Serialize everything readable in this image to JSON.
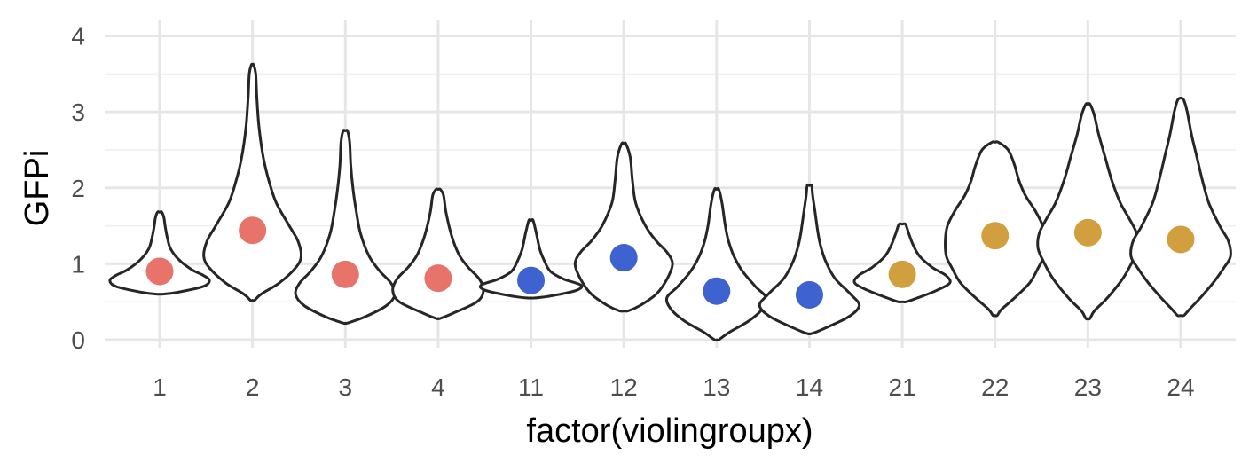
{
  "chart_data": {
    "type": "violin",
    "xlabel": "factor(violingroupx)",
    "ylabel": "GFPi",
    "ylim": [
      -0.05,
      4.2
    ],
    "yticks": [
      "0",
      "1",
      "2",
      "3",
      "4"
    ],
    "grid": true,
    "legend": "none",
    "categories": [
      "1",
      "2",
      "3",
      "4",
      "11",
      "12",
      "13",
      "14",
      "21",
      "22",
      "23",
      "24"
    ],
    "point_colors": {
      "red": "#e8736b",
      "blue": "#3e63d1",
      "gold": "#d29f3f"
    },
    "groups": [
      {
        "category": "1",
        "point": 0.9,
        "color": "red",
        "profile": [
          [
            0.6,
            0.03
          ],
          [
            0.62,
            0.15
          ],
          [
            0.7,
            0.4
          ],
          [
            0.78,
            0.46
          ],
          [
            0.85,
            0.4
          ],
          [
            0.92,
            0.3
          ],
          [
            1.05,
            0.18
          ],
          [
            1.2,
            0.1
          ],
          [
            1.35,
            0.07
          ],
          [
            1.5,
            0.05
          ],
          [
            1.6,
            0.04
          ],
          [
            1.68,
            0.02
          ]
        ]
      },
      {
        "category": "2",
        "point": 1.44,
        "color": "red",
        "profile": [
          [
            0.52,
            0.02
          ],
          [
            0.6,
            0.08
          ],
          [
            0.75,
            0.25
          ],
          [
            0.95,
            0.4
          ],
          [
            1.1,
            0.45
          ],
          [
            1.3,
            0.42
          ],
          [
            1.5,
            0.34
          ],
          [
            1.8,
            0.22
          ],
          [
            2.1,
            0.15
          ],
          [
            2.4,
            0.1
          ],
          [
            2.8,
            0.06
          ],
          [
            3.2,
            0.04
          ],
          [
            3.5,
            0.03
          ],
          [
            3.62,
            0.01
          ]
        ]
      },
      {
        "category": "3",
        "point": 0.86,
        "color": "red",
        "profile": [
          [
            0.22,
            0.02
          ],
          [
            0.3,
            0.18
          ],
          [
            0.45,
            0.38
          ],
          [
            0.6,
            0.46
          ],
          [
            0.75,
            0.42
          ],
          [
            0.9,
            0.32
          ],
          [
            1.1,
            0.22
          ],
          [
            1.4,
            0.14
          ],
          [
            1.7,
            0.1
          ],
          [
            2.0,
            0.07
          ],
          [
            2.3,
            0.05
          ],
          [
            2.6,
            0.04
          ],
          [
            2.75,
            0.02
          ]
        ]
      },
      {
        "category": "4",
        "point": 0.81,
        "color": "red",
        "profile": [
          [
            0.28,
            0.02
          ],
          [
            0.35,
            0.14
          ],
          [
            0.5,
            0.36
          ],
          [
            0.65,
            0.42
          ],
          [
            0.8,
            0.38
          ],
          [
            0.95,
            0.28
          ],
          [
            1.1,
            0.2
          ],
          [
            1.3,
            0.14
          ],
          [
            1.5,
            0.1
          ],
          [
            1.7,
            0.07
          ],
          [
            1.9,
            0.05
          ],
          [
            1.98,
            0.02
          ]
        ]
      },
      {
        "category": "11",
        "point": 0.78,
        "color": "blue",
        "profile": [
          [
            0.55,
            0.04
          ],
          [
            0.58,
            0.2
          ],
          [
            0.65,
            0.42
          ],
          [
            0.72,
            0.46
          ],
          [
            0.8,
            0.3
          ],
          [
            0.9,
            0.18
          ],
          [
            1.05,
            0.12
          ],
          [
            1.2,
            0.08
          ],
          [
            1.4,
            0.05
          ],
          [
            1.57,
            0.02
          ]
        ]
      },
      {
        "category": "12",
        "point": 1.08,
        "color": "blue",
        "profile": [
          [
            0.38,
            0.04
          ],
          [
            0.45,
            0.15
          ],
          [
            0.6,
            0.3
          ],
          [
            0.8,
            0.4
          ],
          [
            1.0,
            0.45
          ],
          [
            1.15,
            0.4
          ],
          [
            1.3,
            0.3
          ],
          [
            1.5,
            0.2
          ],
          [
            1.8,
            0.11
          ],
          [
            2.1,
            0.08
          ],
          [
            2.4,
            0.06
          ],
          [
            2.58,
            0.02
          ]
        ]
      },
      {
        "category": "13",
        "point": 0.64,
        "color": "blue",
        "profile": [
          [
            0.0,
            0.02
          ],
          [
            0.1,
            0.12
          ],
          [
            0.25,
            0.3
          ],
          [
            0.4,
            0.42
          ],
          [
            0.55,
            0.46
          ],
          [
            0.7,
            0.36
          ],
          [
            0.9,
            0.24
          ],
          [
            1.1,
            0.16
          ],
          [
            1.3,
            0.11
          ],
          [
            1.5,
            0.08
          ],
          [
            1.8,
            0.05
          ],
          [
            1.98,
            0.02
          ]
        ]
      },
      {
        "category": "14",
        "point": 0.59,
        "color": "blue",
        "profile": [
          [
            0.08,
            0.02
          ],
          [
            0.15,
            0.14
          ],
          [
            0.3,
            0.36
          ],
          [
            0.45,
            0.46
          ],
          [
            0.6,
            0.38
          ],
          [
            0.8,
            0.24
          ],
          [
            1.0,
            0.16
          ],
          [
            1.2,
            0.11
          ],
          [
            1.4,
            0.08
          ],
          [
            1.7,
            0.05
          ],
          [
            1.9,
            0.03
          ],
          [
            2.03,
            0.02
          ]
        ]
      },
      {
        "category": "21",
        "point": 0.86,
        "color": "gold",
        "profile": [
          [
            0.5,
            0.04
          ],
          [
            0.55,
            0.14
          ],
          [
            0.65,
            0.32
          ],
          [
            0.75,
            0.44
          ],
          [
            0.85,
            0.4
          ],
          [
            0.95,
            0.28
          ],
          [
            1.1,
            0.16
          ],
          [
            1.25,
            0.1
          ],
          [
            1.4,
            0.06
          ],
          [
            1.52,
            0.03
          ]
        ]
      },
      {
        "category": "22",
        "point": 1.37,
        "color": "gold",
        "profile": [
          [
            0.32,
            0.02
          ],
          [
            0.4,
            0.06
          ],
          [
            0.55,
            0.18
          ],
          [
            0.75,
            0.32
          ],
          [
            0.95,
            0.4
          ],
          [
            1.1,
            0.45
          ],
          [
            1.3,
            0.46
          ],
          [
            1.5,
            0.44
          ],
          [
            1.7,
            0.37
          ],
          [
            1.9,
            0.28
          ],
          [
            2.1,
            0.22
          ],
          [
            2.3,
            0.18
          ],
          [
            2.5,
            0.12
          ],
          [
            2.6,
            0.03
          ]
        ]
      },
      {
        "category": "23",
        "point": 1.41,
        "color": "gold",
        "profile": [
          [
            0.28,
            0.02
          ],
          [
            0.38,
            0.06
          ],
          [
            0.55,
            0.18
          ],
          [
            0.8,
            0.32
          ],
          [
            1.0,
            0.4
          ],
          [
            1.2,
            0.46
          ],
          [
            1.4,
            0.45
          ],
          [
            1.6,
            0.38
          ],
          [
            1.8,
            0.3
          ],
          [
            2.1,
            0.22
          ],
          [
            2.4,
            0.16
          ],
          [
            2.7,
            0.1
          ],
          [
            2.95,
            0.06
          ],
          [
            3.1,
            0.02
          ]
        ]
      },
      {
        "category": "24",
        "point": 1.32,
        "color": "gold",
        "profile": [
          [
            0.32,
            0.03
          ],
          [
            0.4,
            0.08
          ],
          [
            0.55,
            0.18
          ],
          [
            0.75,
            0.3
          ],
          [
            0.95,
            0.4
          ],
          [
            1.1,
            0.46
          ],
          [
            1.3,
            0.44
          ],
          [
            1.5,
            0.36
          ],
          [
            1.8,
            0.26
          ],
          [
            2.1,
            0.2
          ],
          [
            2.4,
            0.15
          ],
          [
            2.7,
            0.1
          ],
          [
            3.0,
            0.06
          ],
          [
            3.15,
            0.03
          ],
          [
            3.18,
            0.01
          ]
        ]
      }
    ]
  }
}
